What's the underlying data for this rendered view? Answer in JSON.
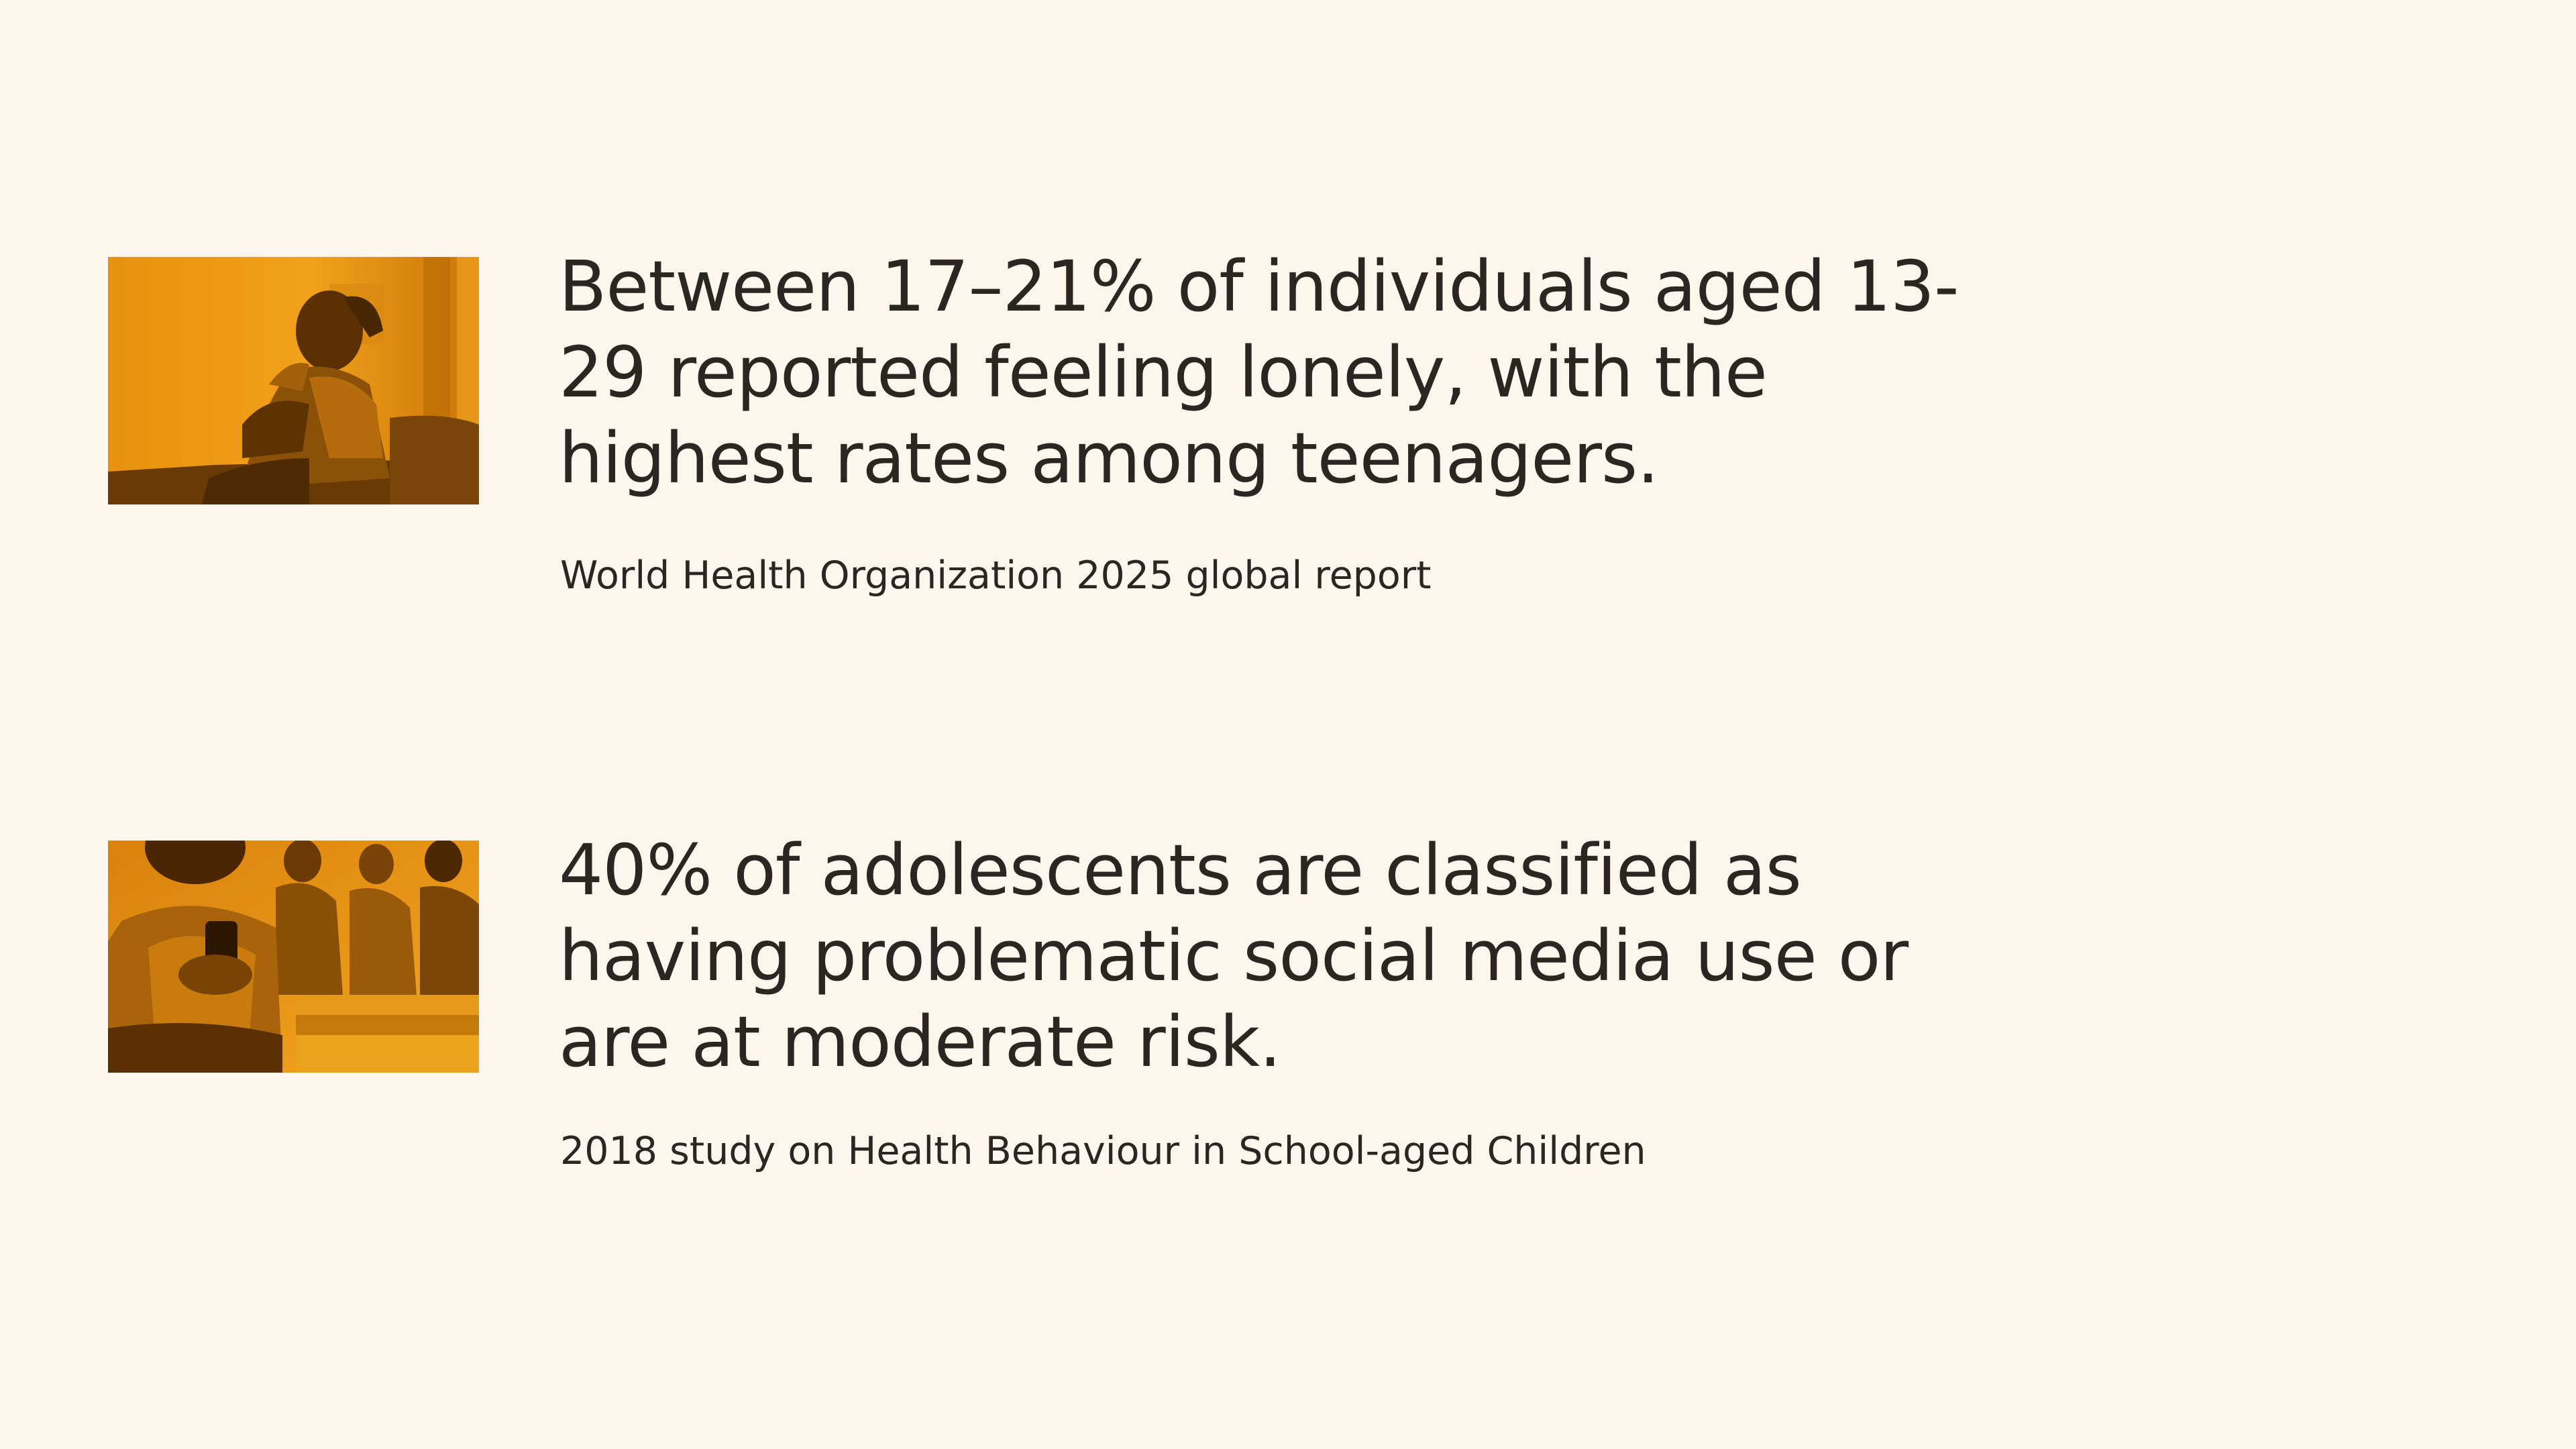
{
  "colors": {
    "background": "#fdf6ec",
    "text": "#2b2622",
    "image_tint_dark": "#5a2f00",
    "image_tint_mid": "#d9800a",
    "image_tint_light": "#f6a91f"
  },
  "stats": [
    {
      "statement": "Between 17–21% of individuals aged 13-29 reported feeling lonely, with the highest rates among teenagers.",
      "source": "World Health Organization 2025 global report",
      "image_icon": "lonely-teen-photo"
    },
    {
      "statement": "40% of adolescents are classified as having problematic social media use or are at moderate risk.",
      "source": "2018 study on Health Behaviour in School-aged Children",
      "image_icon": "teens-with-phones-photo"
    }
  ]
}
